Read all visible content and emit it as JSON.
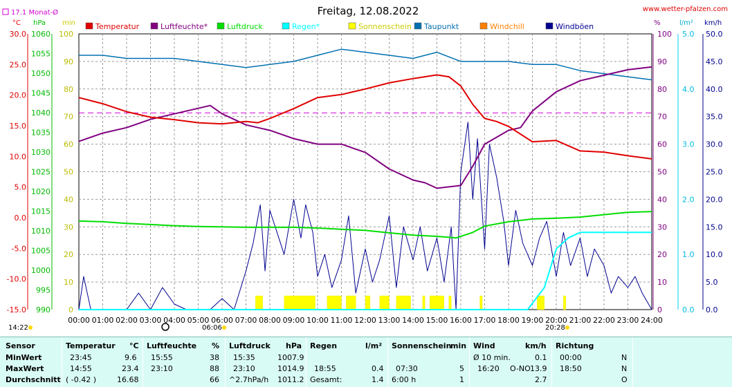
{
  "header": {
    "title": "Freitag, 12.08.2022",
    "site": "www.wetter-pfalzen.com",
    "monat_label": "17.1 Monat-Ø",
    "unit_c": "°C",
    "unit_hpa": "hPa",
    "unit_min": "min",
    "unit_pct": "%",
    "unit_lm2": "l/m²",
    "unit_kmh": "km/h",
    "sunrise": "06:06",
    "sunset": "20:28",
    "left_time": "14:22"
  },
  "legend": [
    {
      "name": "Temperatur",
      "color": "#e00000"
    },
    {
      "name": "Luftfeuchte*",
      "color": "#800080"
    },
    {
      "name": "Luftdruck",
      "color": "#00dd00"
    },
    {
      "name": "Regen*",
      "color": "#00ffff"
    },
    {
      "name": "Sonnenschein",
      "color": "#ffff00"
    },
    {
      "name": "Taupunkt",
      "color": "#0070b0"
    },
    {
      "name": "Windchill",
      "color": "#ff8000"
    },
    {
      "name": "Windböen",
      "color": "#000090"
    }
  ],
  "chart_data": {
    "type": "line",
    "x_ticks": [
      "00:00",
      "01:00",
      "02:00",
      "03:00",
      "04:00",
      "05:00",
      "06:00",
      "07:00",
      "08:00",
      "09:00",
      "10:00",
      "11:00",
      "12:00",
      "13:00",
      "14:00",
      "15:00",
      "16:00",
      "17:00",
      "18:00",
      "19:00",
      "20:00",
      "21:00",
      "22:00",
      "23:00",
      "24:00"
    ],
    "axes": {
      "temp_c": {
        "range": [
          -15,
          30
        ],
        "ticks": [
          "30.0",
          "25.0",
          "20.0",
          "15.0",
          "10.0",
          "5.0",
          "0.0",
          "-5.0",
          "-10.0",
          "-15.0"
        ]
      },
      "pressure_hpa": {
        "range": [
          990,
          1060
        ],
        "ticks": [
          "1060",
          "1055",
          "1050",
          "1045",
          "1040",
          "1035",
          "1030",
          "1025",
          "1020",
          "1015",
          "1010",
          "1005",
          "1000",
          "995",
          "990"
        ]
      },
      "sunshine_min": {
        "range": [
          0,
          100
        ],
        "ticks": [
          "100",
          "90",
          "80",
          "70",
          "60",
          "50",
          "40",
          "30",
          "20",
          "10",
          "0"
        ]
      },
      "humidity_pct": {
        "range": [
          0,
          100
        ],
        "ticks": [
          "100",
          "90",
          "80",
          "70",
          "60",
          "50",
          "40",
          "30",
          "20",
          "10",
          "0"
        ]
      },
      "rain_lm2": {
        "range": [
          0,
          5
        ],
        "ticks": [
          "5.0",
          "4.0",
          "3.0",
          "2.0",
          "1.0",
          "0.0"
        ]
      },
      "wind_kmh": {
        "range": [
          0,
          50
        ],
        "ticks": [
          "50.0",
          "45.0",
          "40.0",
          "35.0",
          "30.0",
          "25.0",
          "20.0",
          "15.0",
          "10.0",
          "5.0",
          "0.0"
        ]
      }
    },
    "monthly_avg_temp": 17.1,
    "series": [
      {
        "name": "Temperatur",
        "x": [
          0,
          1,
          2,
          3,
          4,
          5,
          6,
          7,
          7.5,
          8,
          9,
          10,
          11,
          12,
          13,
          14,
          15,
          15.5,
          16,
          16.5,
          17,
          17.5,
          18,
          19,
          20,
          21,
          22,
          23,
          24
        ],
        "values": [
          19.6,
          18.6,
          17.3,
          16.4,
          16.0,
          15.5,
          15.3,
          15.7,
          15.5,
          16.2,
          17.8,
          19.6,
          20.1,
          21.0,
          22.0,
          22.7,
          23.3,
          23.0,
          21.5,
          18.5,
          16.2,
          15.7,
          14.9,
          12.4,
          12.6,
          10.9,
          10.7,
          10.1,
          9.6
        ]
      },
      {
        "name": "Luftfeuchte*",
        "x": [
          0,
          1,
          2,
          3,
          4,
          5,
          5.5,
          6,
          7,
          8,
          9,
          10,
          11,
          12,
          13,
          14,
          14.5,
          15,
          16,
          16.5,
          17,
          18,
          18.5,
          19,
          20,
          21,
          22,
          23,
          24
        ],
        "values": [
          61,
          64,
          66,
          69,
          71,
          73,
          74,
          71,
          67,
          65,
          62,
          60,
          60,
          57,
          51,
          47,
          46,
          44,
          45,
          52,
          60,
          65,
          66,
          72,
          79,
          83,
          85,
          87,
          88
        ]
      },
      {
        "name": "Luftdruck",
        "x": [
          0,
          1,
          2,
          3,
          4,
          5,
          6,
          7,
          8,
          9,
          10,
          11,
          12,
          13,
          14,
          15,
          15.8,
          16.5,
          17,
          18,
          19,
          20,
          21,
          22,
          23,
          24
        ],
        "values": [
          1012.5,
          1012.3,
          1011.9,
          1011.6,
          1011.3,
          1011.1,
          1011.0,
          1010.9,
          1010.9,
          1010.9,
          1010.7,
          1010.4,
          1010.1,
          1009.5,
          1008.9,
          1008.6,
          1008.2,
          1009.6,
          1011.2,
          1012.3,
          1013.0,
          1013.2,
          1013.5,
          1014.1,
          1014.7,
          1014.9
        ]
      },
      {
        "name": "Regen*",
        "x": [
          0,
          18.8,
          19.5,
          20,
          20.5,
          21,
          22,
          23,
          24
        ],
        "values": [
          0,
          0,
          0.4,
          1.1,
          1.3,
          1.4,
          1.4,
          1.4,
          1.4
        ]
      },
      {
        "name": "Taupunkt",
        "x": [
          0,
          1,
          2,
          3,
          4,
          5,
          6,
          7,
          8,
          9,
          10,
          11,
          12,
          13,
          14,
          15,
          16,
          17,
          18,
          19,
          20,
          21,
          22,
          23,
          24
        ],
        "values": [
          26.5,
          26.5,
          26.0,
          26.0,
          26.0,
          25.5,
          25.0,
          24.5,
          25.0,
          25.5,
          26.5,
          27.5,
          27.0,
          26.5,
          26.0,
          27.0,
          25.5,
          25.5,
          25.5,
          25.0,
          25.0,
          24.0,
          23.5,
          23.0,
          22.5
        ]
      },
      {
        "name": "Windböen",
        "x": [
          0,
          0.2,
          0.5,
          1,
          1.5,
          2,
          2.5,
          3,
          3.5,
          4,
          4.5,
          5,
          5.5,
          6,
          6.5,
          7,
          7.3,
          7.6,
          7.8,
          8,
          8.3,
          8.6,
          9,
          9.3,
          9.5,
          9.8,
          10,
          10.3,
          10.6,
          11,
          11.3,
          11.6,
          12,
          12.3,
          12.6,
          13,
          13.3,
          13.6,
          14,
          14.3,
          14.6,
          15,
          15.3,
          15.6,
          15.8,
          16,
          16.3,
          16.5,
          16.7,
          17,
          17.2,
          17.5,
          17.8,
          18,
          18.3,
          18.6,
          19,
          19.3,
          19.6,
          20,
          20.3,
          20.6,
          21,
          21.3,
          21.6,
          22,
          22.3,
          22.6,
          23,
          23.3,
          23.6,
          24
        ],
        "values": [
          0,
          6,
          0,
          0,
          0,
          0,
          3,
          0,
          4,
          1,
          0,
          0,
          0,
          2,
          0,
          7,
          12,
          19,
          7,
          18,
          14,
          10,
          20,
          13,
          19,
          14,
          6,
          10,
          4,
          9,
          17,
          3,
          11,
          5,
          9,
          17,
          4,
          15,
          9,
          15,
          7,
          13,
          5,
          15,
          0,
          25,
          34,
          20,
          31,
          11,
          30,
          24,
          16,
          8,
          18,
          12,
          8,
          13,
          16,
          6,
          14,
          8,
          13,
          6,
          11,
          8,
          3,
          6,
          4,
          6,
          3,
          0
        ]
      }
    ],
    "sunshine_intervals": [
      [
        7.4,
        7.7
      ],
      [
        8.6,
        9.9
      ],
      [
        10.4,
        11.0
      ],
      [
        11.2,
        11.6
      ],
      [
        12.0,
        12.2
      ],
      [
        12.6,
        13.0
      ],
      [
        13.3,
        13.9
      ],
      [
        14.4,
        14.5
      ],
      [
        14.7,
        15.3
      ],
      [
        15.5,
        15.6
      ],
      [
        16.8,
        16.9
      ],
      [
        19.2,
        19.5
      ],
      [
        20.3,
        20.4
      ]
    ],
    "sunshine_value_min": 5
  },
  "stats": {
    "labels": {
      "sensor": "Sensor",
      "min": "MinWert",
      "max": "MaxWert",
      "avg": "Durchschnitt"
    },
    "temperatur": {
      "title": "Temperatur",
      "unit": "°C",
      "min_time": "23:45",
      "min": "9.6",
      "max_time": "14:55",
      "max": "23.4",
      "avg_note": "( -0.42 )",
      "avg": "16.68"
    },
    "luftfeuchte": {
      "title": "Luftfeuchte",
      "unit": "%",
      "min_time": "15:55",
      "min": "38",
      "max_time": "23:10",
      "max": "88",
      "avg": "66"
    },
    "luftdruck": {
      "title": "Luftdruck",
      "unit": "hPa",
      "min_time": "15:35",
      "min": "1007.9",
      "max_time": "23:10",
      "max": "1014.9",
      "avg_note": "^2.7hPa/h",
      "avg": "1011.2"
    },
    "regen": {
      "title": "Regen",
      "unit": "l/m²",
      "max_time": "18:55",
      "max": "0.4",
      "avg_note": "Gesamt:",
      "avg": "1.4"
    },
    "sonne": {
      "title": "Sonnenschein",
      "unit": "min",
      "max_time": "07:30",
      "max": "5",
      "avg_note": "6:00 h",
      "avg": "1"
    },
    "wind": {
      "title": "Wind",
      "unit": "km/h",
      "min_note": "Ø 10 min.",
      "min": "0.1",
      "max_time": "16:20",
      "max_dir": "O-NO",
      "max": "13.9",
      "avg": "2.7"
    },
    "richtung": {
      "title": "Richtung",
      "min_time": "00:00",
      "min": "N",
      "max_time": "18:50",
      "max": "N",
      "avg": "O"
    }
  }
}
